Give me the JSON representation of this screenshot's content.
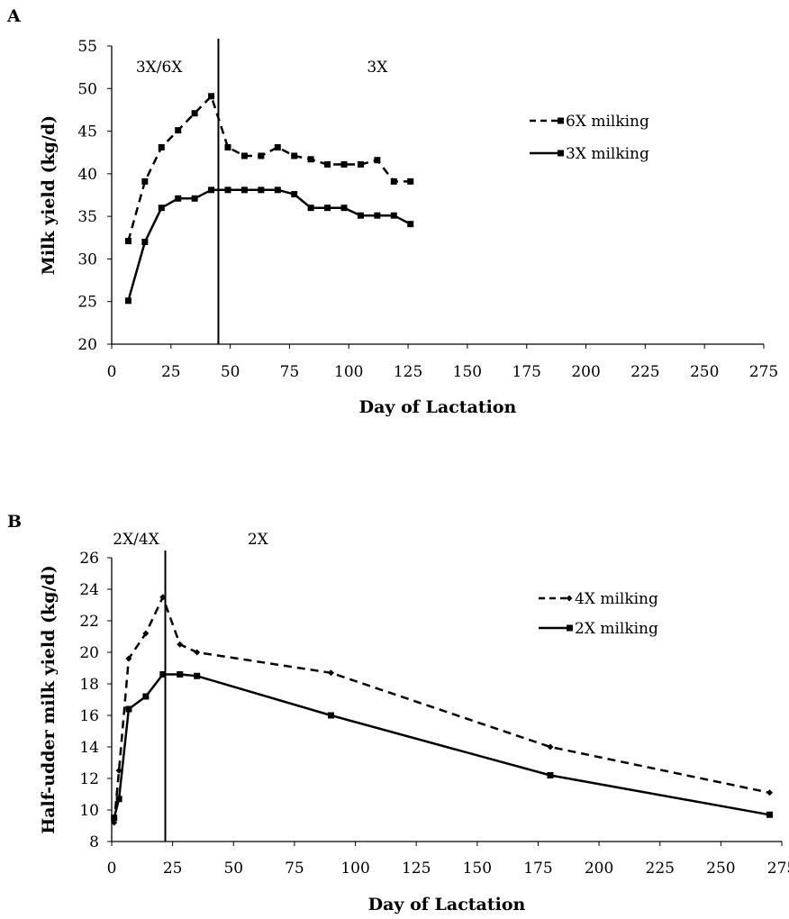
{
  "chart_data": [
    {
      "panel": "A",
      "type": "line",
      "xlabel": "Day of Lactation",
      "ylabel": "Milk yield (kg/d)",
      "xlim": [
        0,
        275
      ],
      "ylim": [
        20,
        55
      ],
      "xticks": [
        0,
        25,
        50,
        75,
        100,
        125,
        150,
        175,
        200,
        225,
        250,
        275
      ],
      "yticks": [
        20,
        25,
        30,
        35,
        40,
        45,
        50,
        55
      ],
      "grid": false,
      "legend_position": "right",
      "vline_x": 45,
      "region_labels": [
        {
          "text": "3X/6X",
          "x": 20
        },
        {
          "text": "3X",
          "x": 112
        }
      ],
      "series": [
        {
          "name": "6X milking",
          "style": "dashed",
          "marker": "square",
          "x": [
            7,
            14,
            21,
            28,
            35,
            42,
            49,
            56,
            63,
            70,
            77,
            84,
            91,
            98,
            105,
            112,
            119,
            126
          ],
          "y": [
            32.1,
            39.1,
            43.1,
            45.1,
            47.1,
            49.1,
            43.1,
            42.1,
            42.1,
            43.1,
            42.1,
            41.7,
            41.1,
            41.1,
            41.1,
            41.6,
            39.1,
            39.1
          ]
        },
        {
          "name": "3X milking",
          "style": "solid",
          "marker": "square",
          "x": [
            7,
            14,
            21,
            28,
            35,
            42,
            49,
            56,
            63,
            70,
            77,
            84,
            91,
            98,
            105,
            112,
            119,
            126
          ],
          "y": [
            25.1,
            32.0,
            36.0,
            37.1,
            37.1,
            38.1,
            38.1,
            38.1,
            38.1,
            38.1,
            37.6,
            36.0,
            36.0,
            36.0,
            35.1,
            35.1,
            35.1,
            34.1
          ]
        }
      ]
    },
    {
      "panel": "B",
      "type": "line",
      "xlabel": "Day of Lactation",
      "ylabel": "Half-udder milk yield (kg/d)",
      "xlim": [
        0,
        275
      ],
      "ylim": [
        8,
        26
      ],
      "xticks": [
        0,
        25,
        50,
        75,
        100,
        125,
        150,
        175,
        200,
        225,
        250,
        275
      ],
      "yticks": [
        8,
        10,
        12,
        14,
        16,
        18,
        20,
        22,
        24,
        26
      ],
      "grid": false,
      "legend_position": "right",
      "vline_x": 22,
      "region_labels": [
        {
          "text": "2X/4X",
          "x": 10
        },
        {
          "text": "2X",
          "x": 60
        }
      ],
      "series": [
        {
          "name": "4X milking",
          "style": "dashed",
          "marker": "diamond",
          "x": [
            1,
            3,
            7,
            14,
            21,
            28,
            35,
            90,
            180,
            270
          ],
          "y": [
            9.2,
            12.5,
            19.6,
            21.2,
            23.5,
            20.5,
            20.0,
            18.7,
            14.0,
            11.1
          ]
        },
        {
          "name": "2X milking",
          "style": "solid",
          "marker": "square",
          "x": [
            1,
            3,
            7,
            14,
            21,
            28,
            35,
            90,
            180,
            270
          ],
          "y": [
            9.5,
            10.7,
            16.4,
            17.2,
            18.6,
            18.6,
            18.5,
            16.0,
            12.2,
            9.7
          ]
        }
      ]
    }
  ]
}
